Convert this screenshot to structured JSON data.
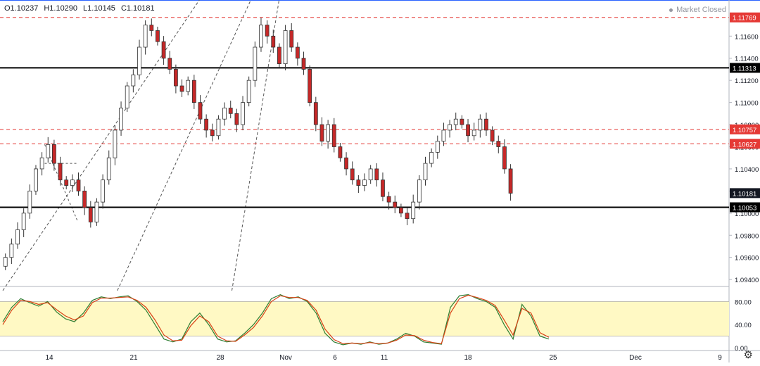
{
  "header": {
    "open": "O1.10237",
    "high": "H1.10290",
    "low": "L1.10145",
    "close": "C1.10181",
    "status": "Market Closed"
  },
  "chart_data": [
    {
      "type": "candlestick",
      "ylim": [
        1.0935,
        1.1185
      ],
      "y_ticks": [
        "1.11600",
        "1.11400",
        "1.11200",
        "1.11000",
        "1.10800",
        "1.10600",
        "1.10400",
        "1.10200",
        "1.10000",
        "1.09800",
        "1.09600",
        "1.09400"
      ],
      "x_ticks": [
        "14",
        "21",
        "28",
        "Nov",
        "6",
        "11",
        "18",
        "25",
        "Dec",
        "9"
      ],
      "close_path": [
        1.096,
        1.0972,
        1.0985,
        1.1,
        1.102,
        1.104,
        1.105,
        1.1062,
        1.1045,
        1.103,
        1.1025,
        1.103,
        1.102,
        1.1005,
        1.0992,
        1.101,
        1.103,
        1.105,
        1.1075,
        1.1095,
        1.1115,
        1.1125,
        1.115,
        1.117,
        1.1165,
        1.1155,
        1.114,
        1.113,
        1.1115,
        1.111,
        1.112,
        1.11,
        1.1085,
        1.1075,
        1.107,
        1.1085,
        1.1095,
        1.109,
        1.108,
        1.11,
        1.112,
        1.115,
        1.117,
        1.116,
        1.115,
        1.1135,
        1.1165,
        1.115,
        1.114,
        1.113,
        1.11,
        1.108,
        1.1065,
        1.108,
        1.106,
        1.105,
        1.104,
        1.103,
        1.1025,
        1.103,
        1.104,
        1.103,
        1.1015,
        1.101,
        1.1005,
        1.1,
        1.0995,
        1.101,
        1.103,
        1.1045,
        1.1055,
        1.1065,
        1.1075,
        1.108,
        1.1085,
        1.108,
        1.107,
        1.1075,
        1.1085,
        1.1075,
        1.1065,
        1.106,
        1.104,
        1.1018
      ],
      "last_close": 1.10181,
      "horizontal_levels": [
        {
          "label": "1.11769",
          "value": 1.11769,
          "style": "dashed-red"
        },
        {
          "label": "1.11313",
          "value": 1.11313,
          "style": "solid-black"
        },
        {
          "label": "1.10757",
          "value": 1.10757,
          "style": "dashed-red"
        },
        {
          "label": "1.10627",
          "value": 1.10627,
          "style": "dashed-red"
        },
        {
          "label": "1.10181",
          "value": 1.10181,
          "style": "last-price"
        },
        {
          "label": "1.10053",
          "value": 1.10053,
          "style": "solid-black"
        }
      ],
      "channel_lines": [
        {
          "from": [
            0,
            1.093
          ],
          "to": [
            17,
            1.1205
          ]
        },
        {
          "from": [
            10,
            1.093
          ],
          "to": [
            23,
            1.1205
          ]
        },
        {
          "from": [
            5,
            1.093
          ],
          "to": [
            21,
            1.1205
          ]
        }
      ],
      "pattern_lines": [
        {
          "from": [
            8,
            1.1062
          ],
          "to": [
            14,
            1.0992
          ]
        },
        {
          "from": [
            8,
            1.1045
          ],
          "to": [
            14,
            1.1045
          ]
        }
      ]
    },
    {
      "type": "line",
      "name": "stochastic",
      "ylim": [
        0,
        100
      ],
      "y_ticks": [
        "80.00",
        "40.00",
        "0.00"
      ],
      "band": [
        20,
        80
      ],
      "series": [
        {
          "color": "#2e7d32",
          "values": [
            45,
            70,
            85,
            78,
            72,
            80,
            62,
            50,
            45,
            60,
            82,
            88,
            85,
            88,
            90,
            80,
            65,
            40,
            15,
            10,
            15,
            45,
            60,
            40,
            15,
            10,
            12,
            25,
            40,
            60,
            85,
            92,
            85,
            88,
            80,
            60,
            25,
            10,
            5,
            8,
            6,
            10,
            6,
            8,
            15,
            25,
            20,
            10,
            8,
            6,
            70,
            90,
            92,
            85,
            80,
            70,
            40,
            15,
            75,
            55,
            20,
            15
          ]
        },
        {
          "color": "#d84315",
          "values": [
            40,
            65,
            82,
            80,
            75,
            78,
            66,
            55,
            48,
            55,
            78,
            86,
            86,
            87,
            88,
            82,
            70,
            48,
            22,
            12,
            13,
            38,
            55,
            45,
            20,
            12,
            11,
            22,
            35,
            55,
            80,
            90,
            87,
            87,
            82,
            65,
            32,
            14,
            7,
            8,
            7,
            9,
            7,
            8,
            13,
            22,
            21,
            13,
            9,
            7,
            60,
            85,
            91,
            87,
            82,
            73,
            48,
            22,
            68,
            60,
            26,
            18
          ]
        }
      ]
    }
  ]
}
